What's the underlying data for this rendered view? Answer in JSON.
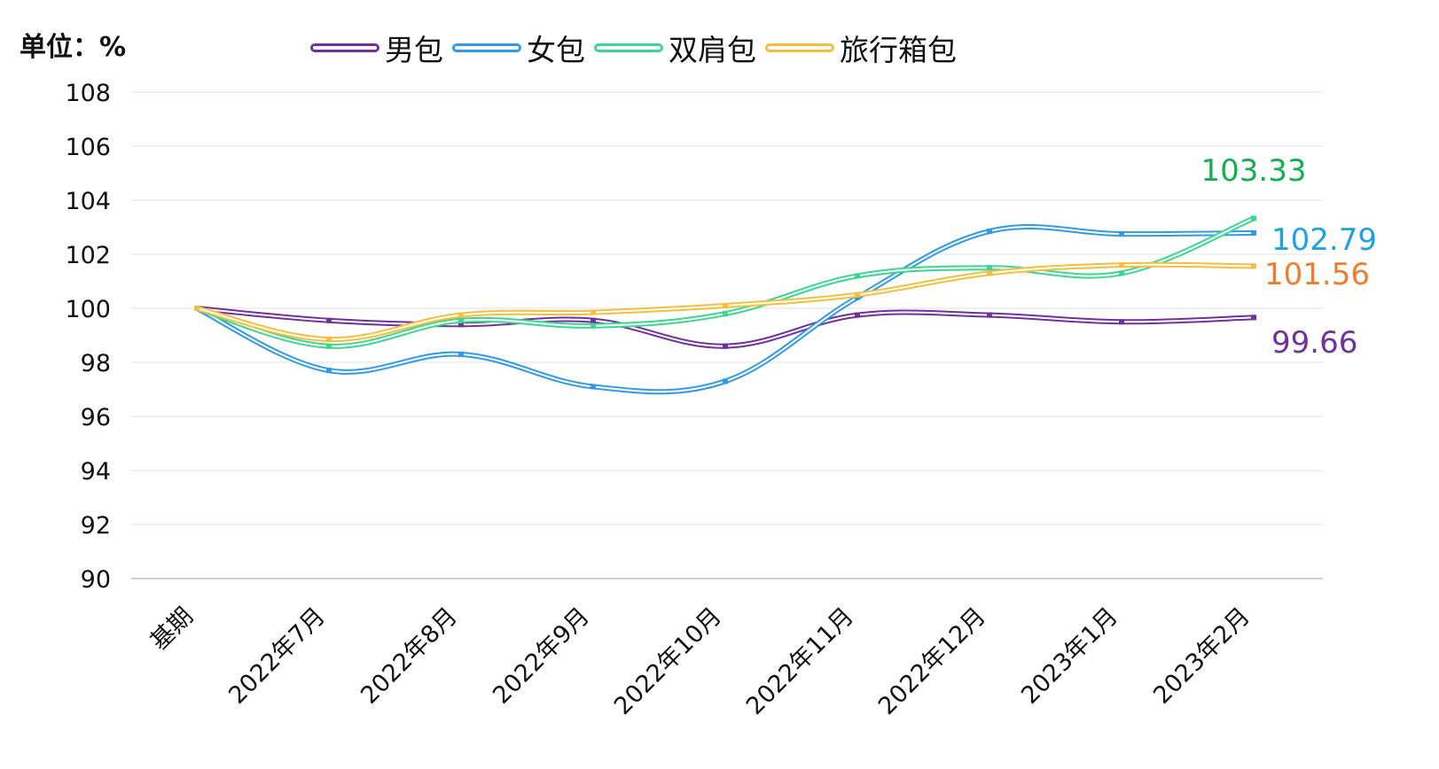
{
  "unit_label": "单位：%",
  "chart_data": {
    "type": "line",
    "categories": [
      "基期",
      "2022年7月",
      "2022年8月",
      "2022年9月",
      "2022年10月",
      "2022年11月",
      "2022年12月",
      "2023年1月",
      "2023年2月"
    ],
    "ylim": [
      90,
      108
    ],
    "yticks": [
      90,
      92,
      94,
      96,
      98,
      100,
      102,
      104,
      106,
      108
    ],
    "grid": true,
    "legend_position": "top",
    "series": [
      {
        "name": "男包",
        "color": "#7030a0",
        "values": [
          100,
          99.55,
          99.4,
          99.55,
          98.6,
          99.75,
          99.75,
          99.5,
          99.66
        ],
        "end_label": "99.66",
        "end_label_color": "#7030a0"
      },
      {
        "name": "女包",
        "color": "#2e9be6",
        "values": [
          100,
          97.7,
          98.3,
          97.1,
          97.3,
          100.4,
          102.85,
          102.75,
          102.79
        ],
        "end_label": "102.79",
        "end_label_color": "#1ea2e0"
      },
      {
        "name": "双肩包",
        "color": "#3ad88e",
        "values": [
          100,
          98.6,
          99.55,
          99.35,
          99.8,
          101.2,
          101.5,
          101.3,
          103.33
        ],
        "end_label": "103.33",
        "end_label_color": "#12b050"
      },
      {
        "name": "旅行箱包",
        "color": "#f5be3c",
        "values": [
          100,
          98.85,
          99.75,
          99.85,
          100.1,
          100.5,
          101.3,
          101.6,
          101.56
        ],
        "end_label": "101.56",
        "end_label_color": "#f07c2c"
      }
    ]
  }
}
